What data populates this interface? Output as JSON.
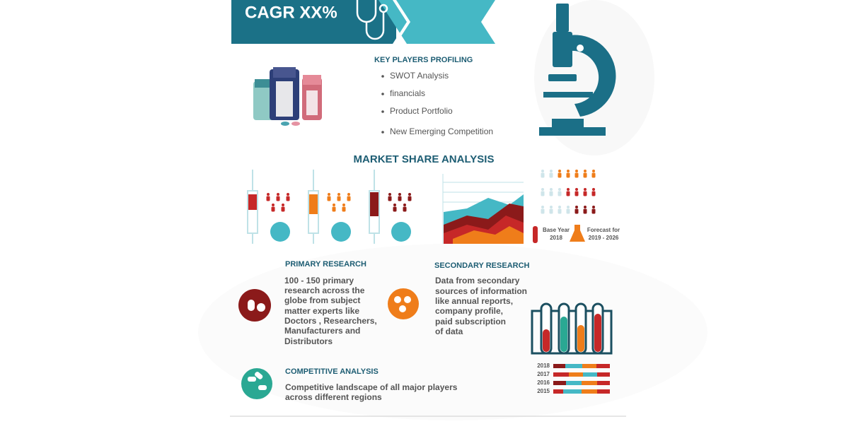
{
  "banner": {
    "title": "CAGR XX%"
  },
  "key_players": {
    "heading": "KEY PLAYERS PROFILING",
    "items": [
      "SWOT Analysis",
      "financials",
      "Product Portfolio",
      "New Emerging Competition"
    ]
  },
  "market_share": {
    "heading": "MARKET SHARE ANALYSIS",
    "base_year": [
      "Base Year",
      "2018"
    ],
    "forecast": [
      "Forecast for",
      "2019 - 2026"
    ]
  },
  "primary_research": {
    "heading": "PRIMARY RESEARCH",
    "lines": [
      "100 - 150 primary",
      "research across the",
      "globe from subject",
      "matter experts like",
      "Doctors , Researchers,",
      "Manufacturers and",
      "Distributors"
    ]
  },
  "secondary_research": {
    "heading": "SECONDARY RESEARCH",
    "lines": [
      "Data from secondary",
      "sources of information",
      "like annual reports,",
      "company profile,",
      "paid subscription",
      "of data"
    ]
  },
  "competitive_analysis": {
    "heading": "COMPETITIVE ANALYSIS",
    "lines": [
      "Competitive landscape of all major players",
      "across different regions"
    ]
  },
  "years": [
    "2018",
    "2017",
    "2016",
    "2015"
  ]
}
